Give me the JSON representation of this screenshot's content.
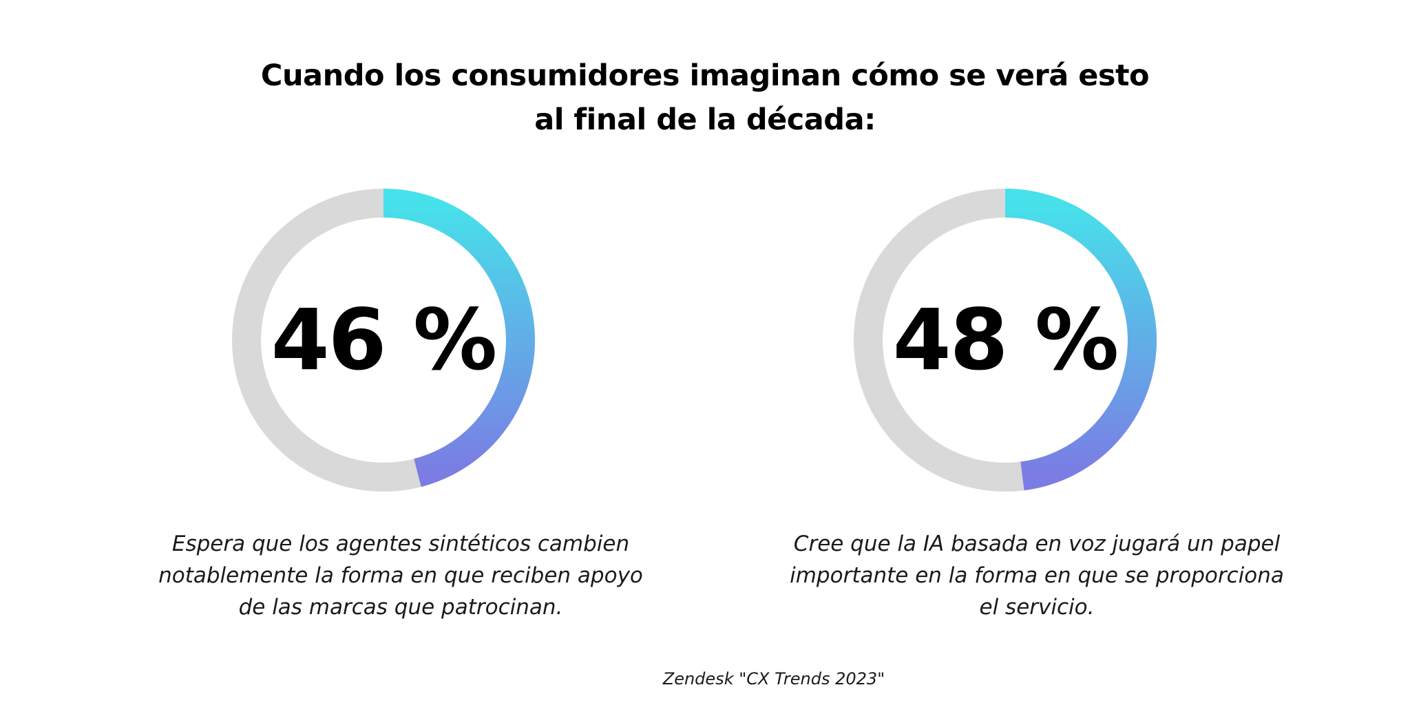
{
  "title": "Cuando los consumidores imaginan cómo se verá esto al final de la década:",
  "source": "Zendesk \"CX Trends 2023\"",
  "colors": {
    "track": "#d9d9d9",
    "gradient_start": "#46e1ea",
    "gradient_end": "#7b7ce4",
    "text": "#000000"
  },
  "chart_data": [
    {
      "type": "pie",
      "variant": "donut",
      "value": 46,
      "max": 100,
      "label": "46 %",
      "caption": "Espera que los agentes sintéticos cambien notablemente la forma en que reciben apoyo de las marcas que patrocinan."
    },
    {
      "type": "pie",
      "variant": "donut",
      "value": 48,
      "max": 100,
      "label": "48 %",
      "caption": "Cree que la IA basada en voz jugará un papel importante en la forma en que se proporciona el servicio."
    }
  ]
}
